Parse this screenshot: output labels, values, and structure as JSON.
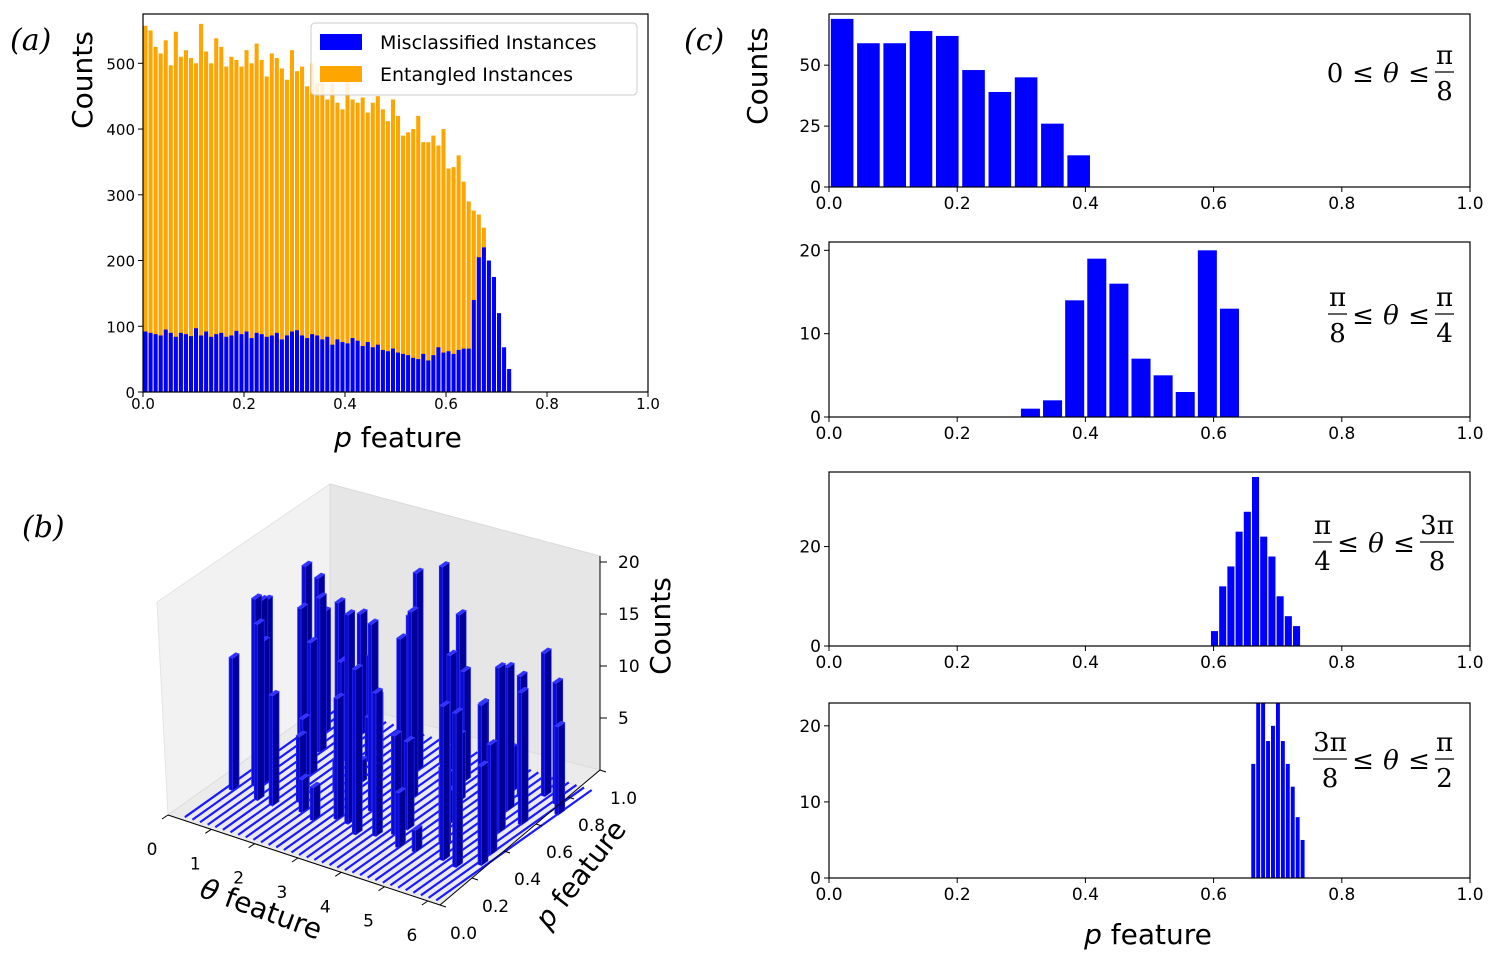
{
  "colors": {
    "misclassified": "#0000ff",
    "entangled": "#ffa500",
    "frame": "#000000"
  },
  "chart_data": [
    {
      "id": "a",
      "panel_label": "(a)",
      "type": "bar",
      "title": "",
      "xlabel_var": "p",
      "xlabel_rest": " feature",
      "ylabel": "Counts",
      "xlim": [
        0.0,
        1.0
      ],
      "ylim": [
        0,
        575
      ],
      "xticks": [
        "0.0",
        "0.2",
        "0.4",
        "0.6",
        "0.8",
        "1.0"
      ],
      "yticks": [
        "0",
        "100",
        "200",
        "300",
        "400",
        "500"
      ],
      "legend_position": "top-right",
      "series": [
        {
          "name": "Misclassified Instances",
          "color": "#0000ff",
          "bin_start": 0.0,
          "bin_width": 0.01,
          "values": [
            92,
            90,
            88,
            86,
            95,
            90,
            84,
            90,
            88,
            85,
            97,
            86,
            92,
            84,
            88,
            90,
            84,
            86,
            93,
            88,
            92,
            82,
            90,
            88,
            84,
            86,
            90,
            80,
            86,
            92,
            94,
            86,
            82,
            88,
            86,
            80,
            84,
            72,
            80,
            76,
            74,
            82,
            78,
            70,
            76,
            68,
            72,
            64,
            62,
            66,
            60,
            58,
            56,
            52,
            50,
            58,
            48,
            56,
            68,
            60,
            62,
            58,
            64,
            66,
            66,
            140,
            205,
            220,
            200,
            175,
            120,
            68,
            35
          ]
        },
        {
          "name": "Entangled Instances",
          "color": "#ffa500",
          "bin_start": 0.0,
          "bin_width": 0.01,
          "values": [
            557,
            550,
            525,
            515,
            535,
            497,
            548,
            510,
            520,
            508,
            500,
            560,
            518,
            500,
            538,
            525,
            495,
            510,
            505,
            495,
            520,
            500,
            530,
            505,
            480,
            515,
            508,
            492,
            475,
            520,
            488,
            495,
            465,
            500,
            470,
            480,
            445,
            470,
            440,
            430,
            495,
            445,
            440,
            448,
            425,
            440,
            450,
            430,
            412,
            445,
            420,
            390,
            395,
            400,
            420,
            380,
            380,
            390,
            375,
            400,
            340,
            342,
            360,
            320,
            290,
            276,
            270,
            250,
            160,
            120,
            90,
            60,
            28
          ]
        }
      ]
    },
    {
      "id": "b",
      "panel_label": "(b)",
      "type": "bar3d",
      "xlabel_var": "θ",
      "xlabel_rest": " feature",
      "ylabel_var": "p",
      "ylabel_rest": " feature",
      "zlabel": "Counts",
      "xticks": [
        "0",
        "1",
        "2",
        "3",
        "4",
        "5",
        "6"
      ],
      "yticks": [
        "0.0",
        "0.2",
        "0.4",
        "0.6",
        "0.8",
        "1.0"
      ],
      "zticks": [
        "5",
        "10",
        "15",
        "20"
      ],
      "ylim": [
        0.0,
        1.0
      ],
      "zlim": [
        0,
        20
      ],
      "series_color": "#0000ff",
      "heights": [
        14,
        13,
        15,
        12,
        16,
        11,
        17,
        13,
        12,
        14,
        16,
        15,
        11,
        12,
        10,
        9,
        8,
        7,
        6,
        5,
        4,
        3,
        3,
        2,
        2,
        3,
        5,
        6,
        9,
        11,
        14,
        18,
        19,
        17,
        18,
        16,
        15,
        17,
        14,
        16,
        13,
        12,
        10,
        9,
        8,
        7,
        6,
        5,
        4,
        3,
        3,
        2,
        2,
        4,
        7,
        9,
        11,
        13,
        14,
        12,
        13,
        15,
        14,
        12,
        11,
        10,
        9,
        8
      ]
    },
    {
      "id": "c1",
      "panel_label": "(c)",
      "type": "bar",
      "range_label": "0 ≤ θ ≤ π/8",
      "ylabel": "Counts",
      "xlabel_var": "",
      "xlabel_rest": "",
      "xlim": [
        0.0,
        1.0
      ],
      "ylim": [
        0,
        71
      ],
      "xticks": [
        "0.0",
        "0.2",
        "0.4",
        "0.6",
        "0.8",
        "1.0"
      ],
      "yticks": [
        "0",
        "25",
        "50"
      ],
      "bin_start": 0.0,
      "bin_width": 0.041,
      "values": [
        69,
        59,
        59,
        64,
        62,
        48,
        39,
        45,
        26,
        13
      ]
    },
    {
      "id": "c2",
      "type": "bar",
      "range_label": "π/8 ≤ θ ≤ π/4",
      "xlim": [
        0.0,
        1.0
      ],
      "ylim": [
        0,
        21
      ],
      "xticks": [
        "0.0",
        "0.2",
        "0.4",
        "0.6",
        "0.8",
        "1.0"
      ],
      "yticks": [
        "0",
        "10",
        "20"
      ],
      "bin_start": 0.297,
      "bin_width": 0.0345,
      "values": [
        1,
        2,
        14,
        19,
        16,
        7,
        5,
        3,
        20,
        13
      ]
    },
    {
      "id": "c3",
      "type": "bar",
      "range_label": "π/4 ≤ θ ≤ 3π/8",
      "xlim": [
        0.0,
        1.0
      ],
      "ylim": [
        0,
        35
      ],
      "xticks": [
        "0.0",
        "0.2",
        "0.4",
        "0.6",
        "0.8",
        "1.0"
      ],
      "yticks": [
        "0",
        "20"
      ],
      "bin_start": 0.595,
      "bin_width": 0.0128,
      "values": [
        3,
        12,
        16,
        23,
        27,
        34,
        22,
        18,
        10,
        6,
        4
      ]
    },
    {
      "id": "c4",
      "type": "bar",
      "range_label": "3π/8 ≤ θ ≤ π/2",
      "xlabel_var": "p",
      "xlabel_rest": " feature",
      "xlim": [
        0.0,
        1.0
      ],
      "ylim": [
        0,
        23
      ],
      "xticks": [
        "0.0",
        "0.2",
        "0.4",
        "0.6",
        "0.8",
        "1.0"
      ],
      "yticks": [
        "0",
        "10",
        "20"
      ],
      "bin_start": 0.658,
      "bin_width": 0.0077,
      "values": [
        15,
        23,
        23,
        18,
        20,
        23,
        18,
        15,
        12,
        8,
        5
      ]
    }
  ]
}
